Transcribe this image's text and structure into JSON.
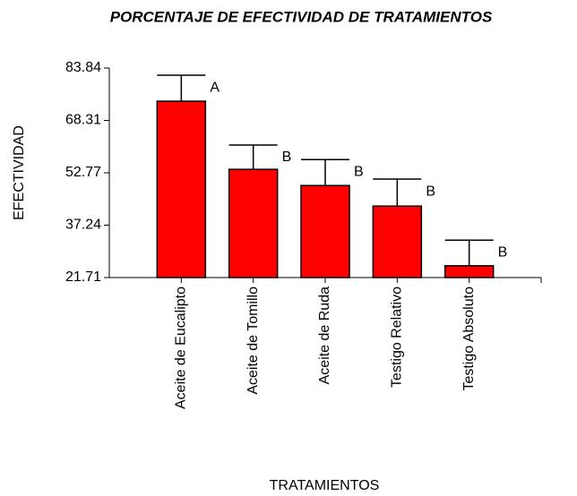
{
  "chart_data": {
    "type": "bar",
    "title": "PORCENTAJE DE EFECTIVIDAD DE TRATAMIENTOS",
    "x_label": "TRATAMIENTOS",
    "y_label": "EFECTIVIDAD",
    "categories": [
      "Aceite de Eucalipto",
      "Aceite de Tomillo",
      "Aceite de Ruda",
      "Testigo Relativo",
      "Testigo Absoluto"
    ],
    "values": [
      74.0,
      53.8,
      49.0,
      42.9,
      25.2
    ],
    "errors": [
      7.7,
      7.2,
      7.7,
      8.0,
      7.6
    ],
    "annotations": [
      "A",
      "B",
      "B",
      "B",
      "B"
    ],
    "color": "#ff0000",
    "ylim": [
      21.71,
      83.84
    ],
    "yticks": [
      21.71,
      37.24,
      52.77,
      68.31,
      83.84
    ],
    "grid": false
  }
}
